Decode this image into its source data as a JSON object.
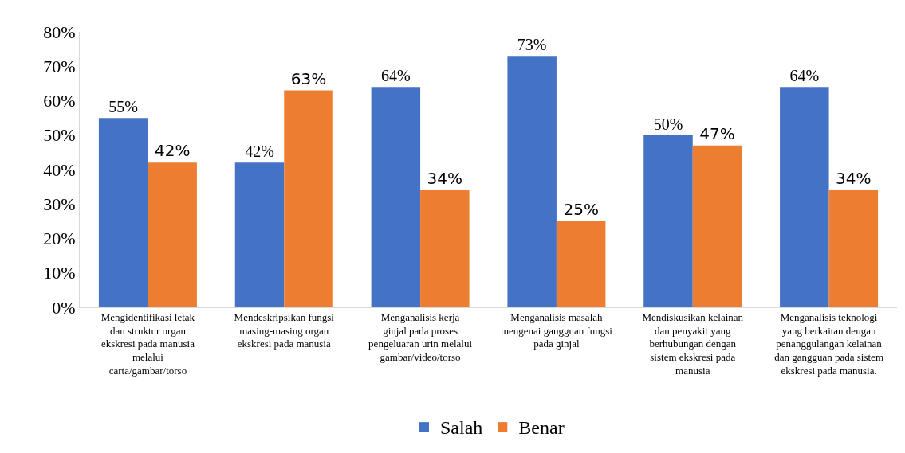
{
  "chart_data": {
    "type": "bar",
    "categories": [
      "Mengidentifikasi letak dan struktur organ ekskresi pada manusia melalui carta/gambar/torso",
      "Mendeskripsikan fungsi masing-masing organ ekskresi pada manusia",
      "Menganalisis kerja ginjal pada proses pengeluaran urin melalui gambar/video/torso",
      "Menganalisis masalah mengenai gangguan fungsi pada ginjal",
      "Mendiskusikan kelainan dan penyakit yang berhubungan dengan sistem ekskresi pada manusia",
      "Menganalisis teknologi yang berkaitan dengan penanggulangan kelainan dan gangguan pada sistem ekskresi pada manusia."
    ],
    "series": [
      {
        "name": "Salah",
        "color": "#4472c4",
        "values": [
          55,
          42,
          64,
          73,
          50,
          64
        ],
        "value_labels": [
          "55%",
          "42%",
          "64%",
          "73%",
          "50%",
          "64%"
        ]
      },
      {
        "name": "Benar",
        "color": "#ed7d31",
        "values": [
          42,
          63,
          34,
          25,
          47,
          34
        ],
        "value_labels": [
          "42%",
          "63%",
          "34%",
          "25%",
          "47%",
          "34%"
        ]
      }
    ],
    "ylim": [
      0,
      80
    ],
    "yticks": [
      {
        "value": 0,
        "label": "0%"
      },
      {
        "value": 10,
        "label": "10%"
      },
      {
        "value": 20,
        "label": "20%"
      },
      {
        "value": 30,
        "label": "30%"
      },
      {
        "value": 40,
        "label": "40%"
      },
      {
        "value": 50,
        "label": "50%"
      },
      {
        "value": 60,
        "label": "60%"
      },
      {
        "value": 70,
        "label": "70%"
      },
      {
        "value": 80,
        "label": "80%"
      }
    ],
    "grid": false,
    "legend": "bottom"
  }
}
